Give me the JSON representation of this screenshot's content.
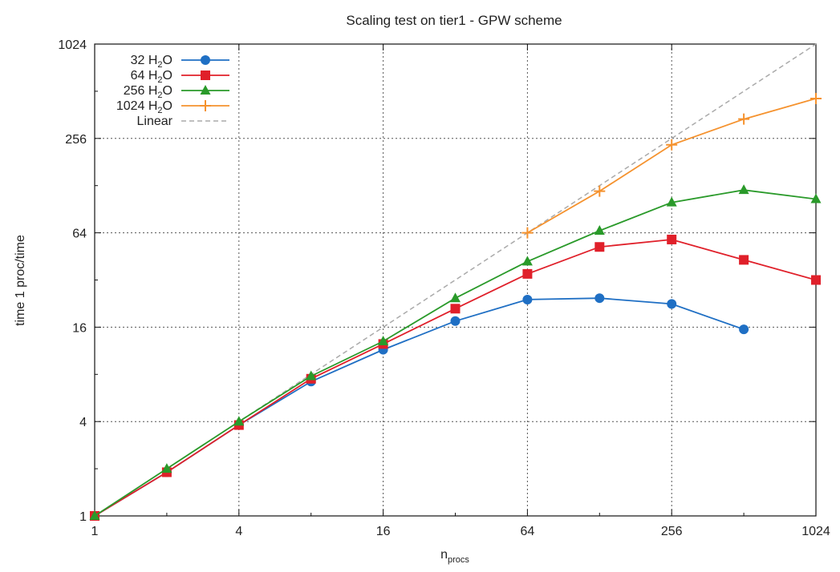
{
  "chart_data": {
    "type": "line",
    "title": "Scaling test on tier1 - GPW scheme",
    "xlabel": {
      "main": "n",
      "sub": "procs"
    },
    "ylabel": "time 1 proc/time",
    "xscale": "log2",
    "yscale": "log2",
    "xlim": [
      1,
      1024
    ],
    "ylim": [
      1,
      1024
    ],
    "xticks": [
      1,
      4,
      16,
      64,
      256,
      1024
    ],
    "yticks": [
      1,
      4,
      16,
      64,
      256,
      1024
    ],
    "grid": true,
    "legend_position": "top-left",
    "series": [
      {
        "name": "32 H2O",
        "label": {
          "pre": "32 H",
          "sub": "2",
          "post": "O"
        },
        "color": "#1f6fc4",
        "marker": "circle",
        "x": [
          1,
          2,
          4,
          8,
          16,
          32,
          64,
          128,
          256,
          512
        ],
        "y": [
          1,
          1.9,
          3.8,
          7.2,
          11.5,
          17.5,
          24,
          24.5,
          22.5,
          15.5
        ]
      },
      {
        "name": "64 H2O",
        "label": {
          "pre": "64 H",
          "sub": "2",
          "post": "O"
        },
        "color": "#e0202a",
        "marker": "square",
        "x": [
          1,
          2,
          4,
          8,
          16,
          32,
          64,
          128,
          256,
          512,
          1024
        ],
        "y": [
          1,
          1.9,
          3.8,
          7.5,
          12.5,
          21,
          35,
          52,
          58,
          43,
          32
        ]
      },
      {
        "name": "256 H2O",
        "label": {
          "pre": "256 H",
          "sub": "2",
          "post": "O"
        },
        "color": "#2a9a2a",
        "marker": "triangle",
        "x": [
          1,
          2,
          4,
          8,
          16,
          32,
          64,
          128,
          256,
          512,
          1024
        ],
        "y": [
          1,
          2,
          4,
          7.8,
          13,
          24.5,
          42,
          66,
          100,
          120,
          105
        ]
      },
      {
        "name": "1024 H2O",
        "label": {
          "pre": "1024 H",
          "sub": "2",
          "post": "O"
        },
        "color": "#f5922e",
        "marker": "plus",
        "x": [
          64,
          128,
          256,
          512,
          1024
        ],
        "y": [
          64,
          118,
          233,
          340,
          460
        ]
      },
      {
        "name": "Linear",
        "label": {
          "pre": "Linear",
          "sub": "",
          "post": ""
        },
        "color": "#aaaaaa",
        "marker": "none",
        "dashed": true,
        "x": [
          1,
          1024
        ],
        "y": [
          1,
          1024
        ]
      }
    ]
  }
}
